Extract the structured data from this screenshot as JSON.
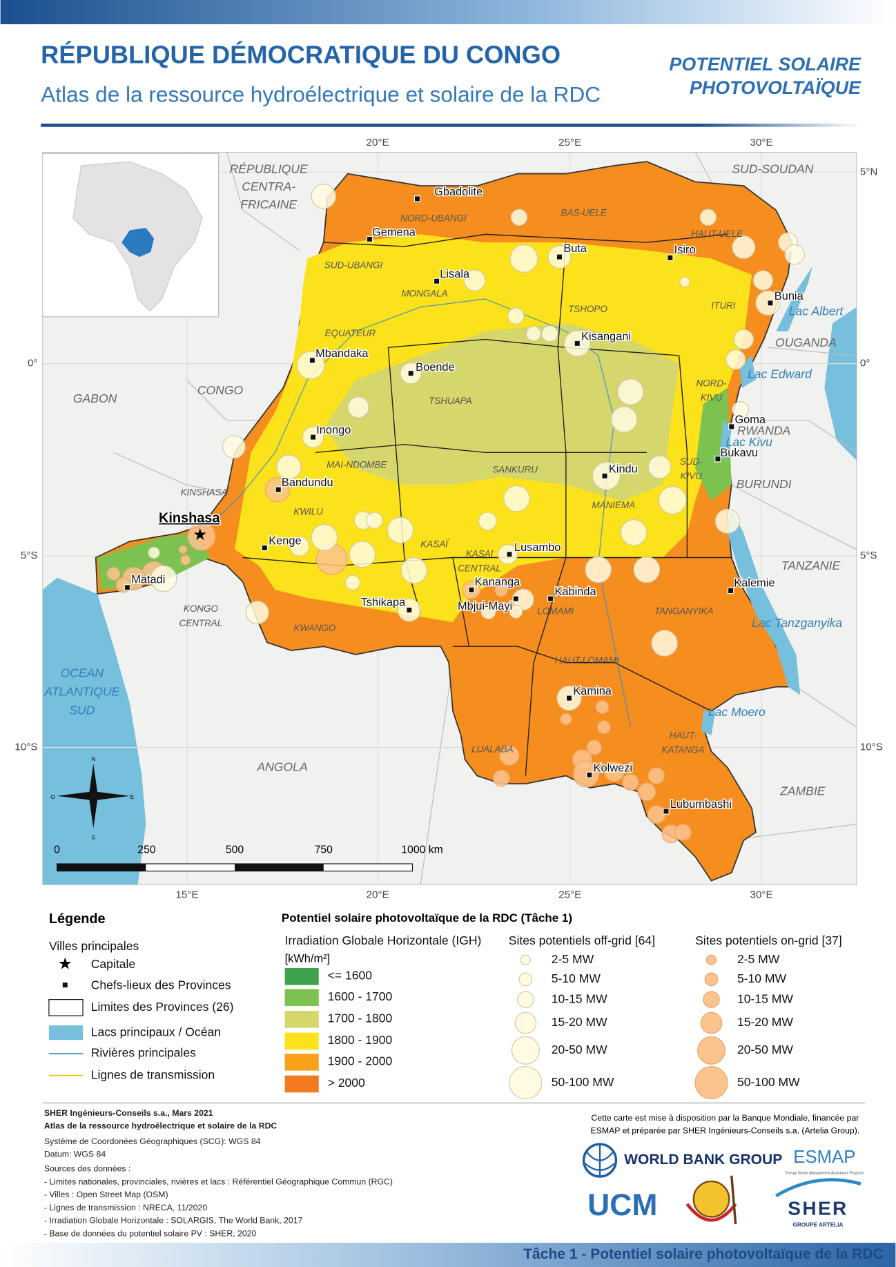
{
  "header": {
    "title": "RÉPUBLIQUE DÉMOCRATIQUE DU CONGO",
    "subtitle": "Atlas de la ressource hydroélectrique et solaire de la RDC",
    "theme": [
      "POTENTIEL SOLAIRE",
      "PHOTOVOLTAÏQUE"
    ]
  },
  "map": {
    "graticule": {
      "top": [
        "20°E",
        "25°E",
        "30°E"
      ],
      "bottom": [
        "15°E",
        "20°E",
        "25°E",
        "30°E"
      ],
      "left": [
        "0°",
        "5°S",
        "10°S"
      ],
      "right": [
        "5°N",
        "0°",
        "5°S",
        "10°S"
      ]
    },
    "countries": [
      [
        "RÉPUBLIQUE",
        "CENTRA-",
        "FRICAINE"
      ],
      [
        "SUD-SOUDAN"
      ],
      [
        "CONGO"
      ],
      [
        "GABON"
      ],
      [
        "OUGANDA"
      ],
      [
        "RWANDA"
      ],
      [
        "BURUNDI"
      ],
      [
        "TANZANIE"
      ],
      [
        "ANGOLA"
      ],
      [
        "ZAMBIE"
      ]
    ],
    "water": [
      [
        "Lac Albert"
      ],
      [
        "Lac Edward"
      ],
      [
        "Lac Kivu"
      ],
      [
        "Lac Tanzganyika"
      ],
      [
        "Lac Moero"
      ],
      [
        "OCEAN",
        "ATLANTIQUE",
        "SUD"
      ]
    ],
    "provinces": [
      [
        "NORD-UBANGI"
      ],
      [
        "BAS-UELE"
      ],
      [
        "HAUT-UELE"
      ],
      [
        "SUD-UBANGI"
      ],
      [
        "MONGALA"
      ],
      [
        "TSHOPO"
      ],
      [
        "ITURI"
      ],
      [
        "EQUATEUR"
      ],
      [
        "TSHUAPA"
      ],
      [
        "NORD-",
        "KIVU"
      ],
      [
        "MAI-NDOMBE"
      ],
      [
        "SANKURU"
      ],
      [
        "SUD-",
        "KIVU"
      ],
      [
        "KINSHASA"
      ],
      [
        "KWILU"
      ],
      [
        "MANIEMA"
      ],
      [
        "KASAÏ"
      ],
      [
        "KASAI",
        "CENTRAL"
      ],
      [
        "LOMAMI"
      ],
      [
        "TANGANYIKA"
      ],
      [
        "KONGO",
        "CENTRAL"
      ],
      [
        "KWANGO"
      ],
      [
        "HAUT-LOMAMI"
      ],
      [
        "HAUT-",
        "KATANGA"
      ],
      [
        "LUALABA"
      ]
    ],
    "capital": "Kinshasa",
    "cities": [
      "Gbadolite",
      "Gemena",
      "Lisala",
      "Buta",
      "Isiro",
      "Bunia",
      "Kisangani",
      "Mbandaka",
      "Boende",
      "Inongo",
      "Goma",
      "Bukavu",
      "Kindu",
      "Bandundu",
      "Kenge",
      "Lusambo",
      "Matadi",
      "Kalemie",
      "Kananga",
      "Kabinda",
      "Tshikapa",
      "Mbjui-Mayi",
      "Kamina",
      "Kolwezi",
      "Lubumbashi"
    ],
    "compass": [
      "N",
      "S",
      "O",
      "E"
    ],
    "scale": [
      "0",
      "250",
      "500",
      "750",
      "1000 km"
    ]
  },
  "legend": {
    "title": "Légende",
    "cities_title": "Villes principales",
    "symbols": [
      "Capitale",
      "Chefs-lieux des Provinces",
      "Limites des Provinces (26)",
      "Lacs principaux / Océan",
      "Rivières principales",
      "Lignes de transmission"
    ],
    "panel_title": "Potentiel solaire photovoltaïque de la RDC (Tâche 1)",
    "igh_title": "Irradiation Globale Horizontale (IGH)",
    "igh_unit": "[kWh/m²]",
    "igh_classes": [
      {
        "label": "<= 1600",
        "color": "#3fa34d"
      },
      {
        "label": "1600 - 1700",
        "color": "#7cc251"
      },
      {
        "label": "1700 - 1800",
        "color": "#d5d76c"
      },
      {
        "label": "1800 - 1900",
        "color": "#fbe21a"
      },
      {
        "label": "1900 - 2000",
        "color": "#f9a11b"
      },
      {
        "label": "> 2000",
        "color": "#f47a20"
      }
    ],
    "offgrid_title": "Sites potentiels off-grid [64]",
    "offgrid_classes": [
      "2-5 MW",
      "5-10 MW",
      "10-15 MW",
      "15-20 MW",
      "20-50 MW",
      "50-100 MW"
    ],
    "ongrid_title": "Sites potentiels on-grid [37]",
    "ongrid_classes": [
      "2-5 MW",
      "5-10 MW",
      "10-15 MW",
      "15-20 MW",
      "20-50 MW",
      "50-100 MW"
    ]
  },
  "footer": {
    "lines": [
      "SHER Ingénieurs-Conseils s.a., Mars 2021",
      "Atlas de la ressource hydroélectrique et solaire de la RDC",
      "Système de Coordonées Géographiques (SCG): WGS 84",
      "Datum: WGS 84",
      "Sources des données :",
      "- Limites nationales, provinciales, rivières et lacs : Référentiel Géographique Commun (RGC)",
      "- Villes : Open Street Map (OSM)",
      "- Lignes de transmission : NRECA, 11/2020",
      "- Irradiation Globale Horizontale : SOLARGIS, The World Bank, 2017",
      "- Base de données du potentiel solaire PV : SHER, 2020"
    ],
    "disclaimer": [
      "Cette carte est mise à disposition par la Banque Mondiale, financée par",
      "ESMAP et préparée par SHER Ingénieurs-Conseils s.a. (Artelia Group)."
    ],
    "logos": {
      "world_bank": "WORLD BANK GROUP",
      "esmap": "ESMAP",
      "esmap_sub": "Energy Sector Management Assistance Program",
      "ucm": "UCM",
      "sher": "SHER",
      "sher_sub": "GROUPE ARTELIA"
    },
    "banner": "Tâche 1 - Potentiel solaire photovoltaïque de la RDC"
  }
}
